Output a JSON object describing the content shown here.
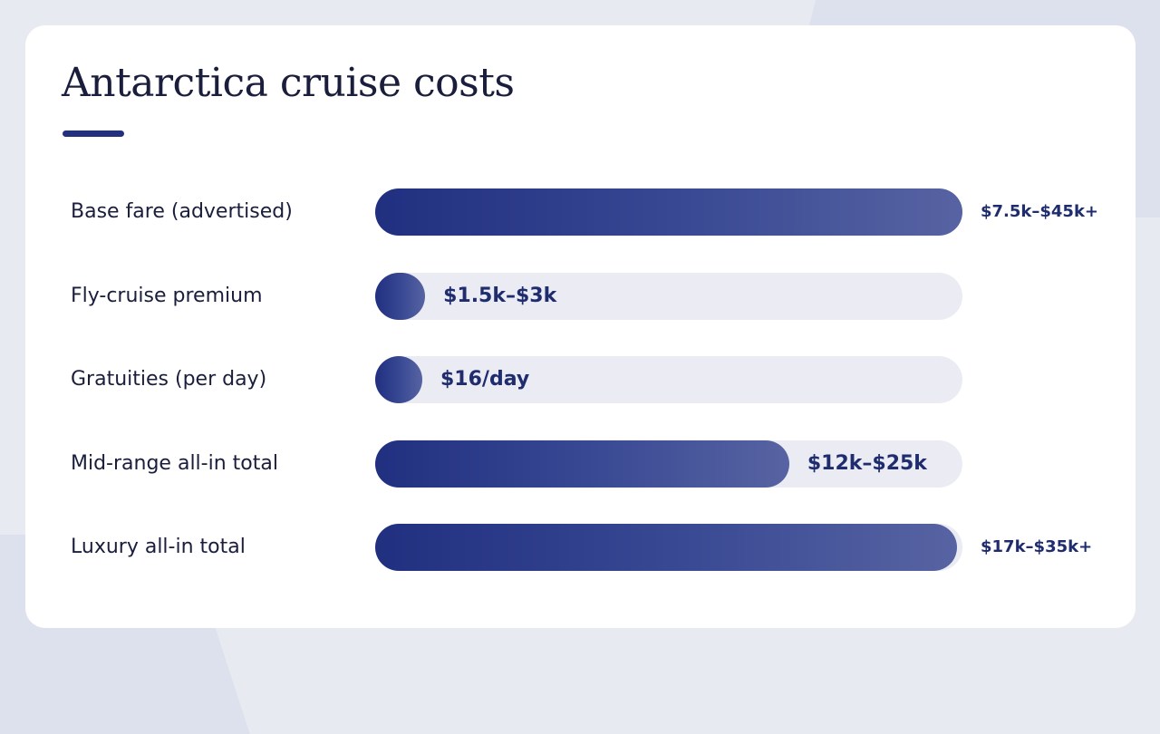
{
  "chart_data": {
    "type": "bar",
    "orientation": "horizontal",
    "title": "Antarctica cruise costs",
    "xlim": [
      0,
      1
    ],
    "categories": [
      "Base fare (advertised)",
      "Fly-cruise premium",
      "Gratuities (per day)",
      "Mid-range all-in total",
      "Luxury all-in total"
    ],
    "values": [
      1.0,
      0.085,
      0.08,
      0.705,
      0.99
    ],
    "value_labels": [
      "$7.5k–$45k+",
      "$1.5k–$3k",
      "$16/day",
      "$12k–$25k",
      "$17k–$35k+"
    ],
    "label_placement": [
      "outside",
      "inside",
      "inside",
      "inside",
      "outside"
    ],
    "grid": false,
    "legend": "none"
  },
  "colors": {
    "bar_start": "#212f80",
    "bar_end": "#5763a2",
    "track": "#ebecf3",
    "value_text": "#1f2c6e",
    "accent_underline": "#23307e"
  }
}
